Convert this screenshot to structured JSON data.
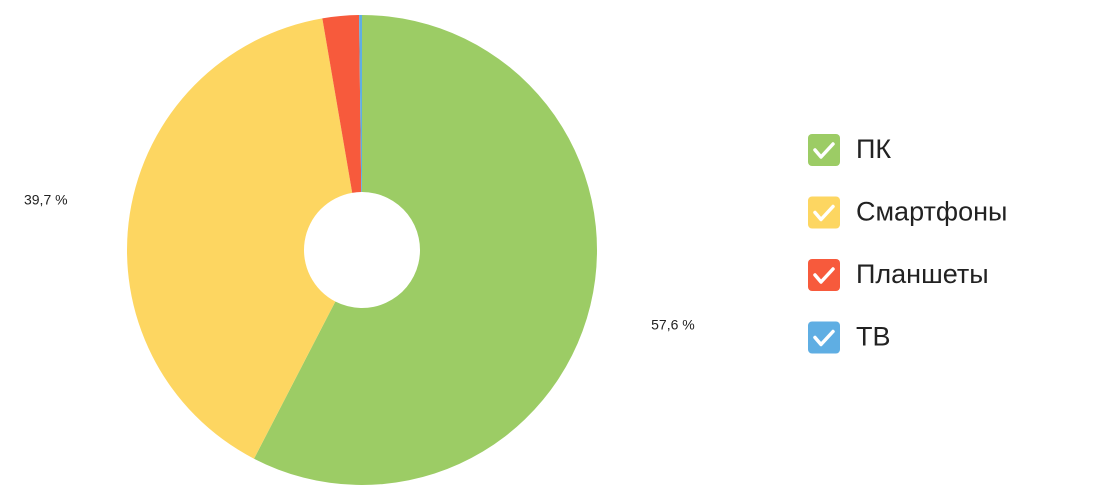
{
  "chart_data": {
    "type": "pie",
    "categories": [
      "ПК",
      "Смартфоны",
      "Планшеты",
      "ТВ"
    ],
    "values": [
      57.6,
      39.7,
      2.5,
      0.2
    ],
    "value_labels": [
      "57,6 %",
      "39,7 %",
      null,
      null
    ],
    "colors": [
      "#9ccc65",
      "#fdd661",
      "#f75a3c",
      "#5faee3"
    ],
    "legend": "right"
  }
}
